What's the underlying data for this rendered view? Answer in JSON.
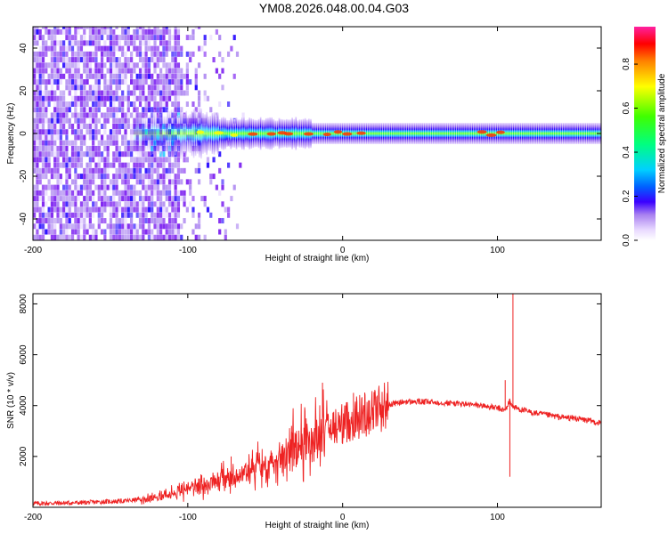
{
  "title": "YM08.2026.048.00.04.G03",
  "chart_data": [
    {
      "type": "heatmap",
      "name": "spectrogram",
      "xlabel": "Height of straight line (km)",
      "ylabel": "Frequency (Hz)",
      "xlim": [
        -200,
        167
      ],
      "ylim": [
        -50,
        50
      ],
      "xticks": [
        -200,
        -100,
        0,
        100
      ],
      "yticks": [
        -40,
        -20,
        0,
        20,
        40
      ],
      "colorbar": {
        "label": "Normalized spectral amplitude",
        "range": [
          0,
          0.97
        ],
        "ticks": [
          0.0,
          0.2,
          0.4,
          0.6,
          0.8
        ],
        "colormap": [
          "#ffffff",
          "#e8d8ff",
          "#a880f0",
          "#7b1ef0",
          "#1f00ff",
          "#00c0ff",
          "#00ff80",
          "#55ff00",
          "#ffff00",
          "#ff8000",
          "#ff0000",
          "#ff00a0"
        ]
      },
      "features": {
        "noise_region_x": [
          -200,
          -105
        ],
        "signal_center_freq": 0,
        "signal_onset_x": -135,
        "strong_band_x": [
          -50,
          167
        ]
      }
    },
    {
      "type": "line",
      "name": "snr",
      "xlabel": "Height of straight line (km)",
      "ylabel": "SNR (10 * v/v)",
      "xlim": [
        -200,
        167
      ],
      "ylim": [
        0,
        8400
      ],
      "xticks": [
        -200,
        -100,
        0,
        100
      ],
      "yticks": [
        2000,
        4000,
        6000,
        8000
      ],
      "color": "#ee2222",
      "series": [
        {
          "name": "SNR",
          "x": [
            -200,
            -170,
            -140,
            -125,
            -110,
            -100,
            -90,
            -80,
            -70,
            -60,
            -50,
            -40,
            -30,
            -20,
            -10,
            0,
            10,
            20,
            30,
            40,
            50,
            60,
            70,
            80,
            90,
            95,
            100,
            105,
            108,
            110,
            115,
            120,
            130,
            140,
            150,
            160,
            167
          ],
          "y": [
            150,
            180,
            250,
            350,
            550,
            750,
            900,
            1050,
            1250,
            1450,
            1700,
            2000,
            2350,
            2700,
            3000,
            3300,
            3550,
            3850,
            4050,
            4150,
            4150,
            4130,
            4100,
            4050,
            4000,
            3950,
            3900,
            3800,
            4200,
            3950,
            3850,
            3750,
            3650,
            3550,
            3500,
            3400,
            3300
          ]
        }
      ],
      "spikes": [
        {
          "x": -72,
          "y": 2000
        },
        {
          "x": -33,
          "y": 3200
        },
        {
          "x": -13,
          "y": 4900
        },
        {
          "x": 7,
          "y": 4500
        },
        {
          "x": 105,
          "y": 5000
        },
        {
          "x": 110,
          "y": 8400
        },
        {
          "x": 108,
          "y": 1200
        }
      ]
    }
  ]
}
